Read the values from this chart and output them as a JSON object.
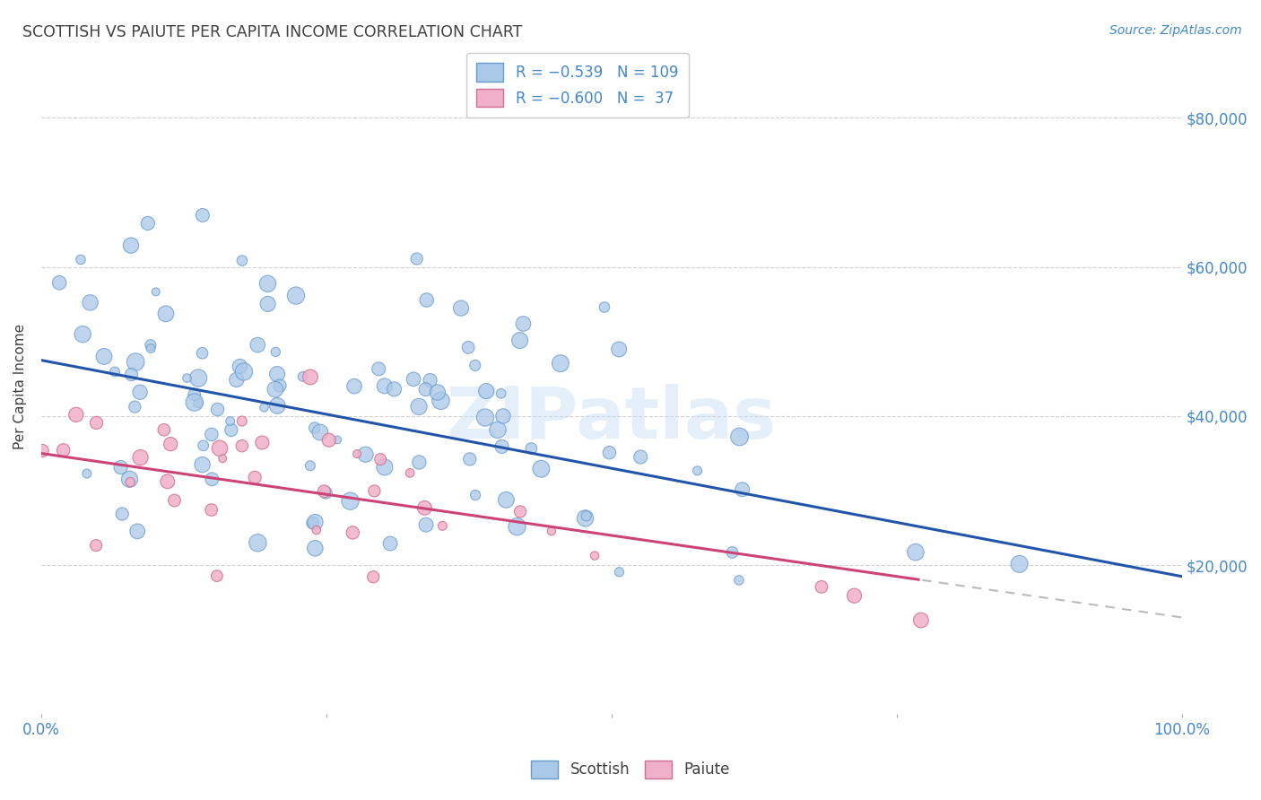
{
  "title": "SCOTTISH VS PAIUTE PER CAPITA INCOME CORRELATION CHART",
  "source": "Source: ZipAtlas.com",
  "ylabel": "Per Capita Income",
  "watermark": "ZIPatlas",
  "ytick_labels": [
    "$20,000",
    "$40,000",
    "$60,000",
    "$80,000"
  ],
  "ytick_values": [
    20000,
    40000,
    60000,
    80000
  ],
  "ylim": [
    0,
    88000
  ],
  "xlim": [
    0.0,
    1.0
  ],
  "scottish_color": "#aac8e8",
  "scottish_edge": "#6699cc",
  "paiute_color": "#f0b0c8",
  "paiute_edge": "#d07090",
  "bg_color": "#ffffff",
  "grid_color": "#cccccc",
  "title_color": "#404040",
  "axis_color": "#4488cc",
  "regression_scottish_color": "#2255aa",
  "regression_paiute_color": "#cc4477",
  "regression_paiute_extend_color": "#bbbbbb",
  "scottish_N": 109,
  "paiute_N": 37,
  "scottish_intercept": 47500,
  "scottish_slope": -29000,
  "paiute_intercept": 35000,
  "paiute_slope": -22000,
  "random_seed": 42
}
